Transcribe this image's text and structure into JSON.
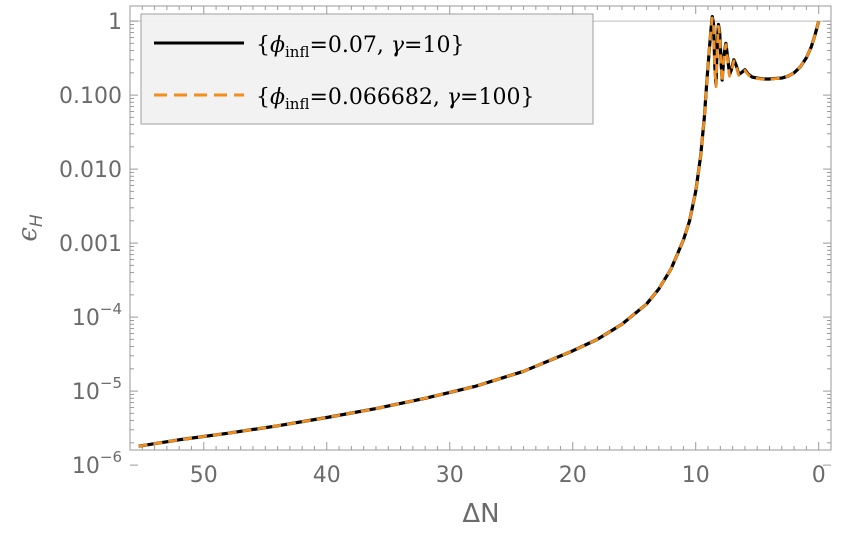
{
  "chart_data": {
    "type": "line",
    "title": "",
    "xlabel": "ΔN",
    "ylabel": "ϵH",
    "ylabel_main": "ϵ",
    "ylabel_sub": "H",
    "x_reversed": true,
    "xlim": [
      56,
      -1
    ],
    "ylim": [
      1.6e-06,
      1.6
    ],
    "yscale": "log",
    "grid": false,
    "reference_line_y": 1,
    "legend_placement": "top-left",
    "x_ticks": [
      50,
      40,
      30,
      20,
      10,
      0
    ],
    "x_tick_labels": [
      "50",
      "40",
      "30",
      "20",
      "10",
      "0"
    ],
    "y_ticks": [
      {
        "value": 1e-06,
        "base": "10",
        "exp": "−6"
      },
      {
        "value": 1e-05,
        "base": "10",
        "exp": "−5"
      },
      {
        "value": 0.0001,
        "base": "10",
        "exp": "−4"
      },
      {
        "value": 0.001,
        "text": "0.001"
      },
      {
        "value": 0.01,
        "text": "0.010"
      },
      {
        "value": 0.1,
        "text": "0.100"
      },
      {
        "value": 1,
        "text": "1"
      }
    ],
    "series": [
      {
        "name": "{ϕinfl=0.07, γ=10}",
        "legend_parts": {
          "open": "{",
          "phi": "ϕ",
          "sub": "infl",
          "mid": "=0.07, ",
          "gamma": "γ",
          "close": "=10}"
        },
        "color": "#000000",
        "style": "solid",
        "points": [
          [
            55.3,
            1.8e-06
          ],
          [
            52,
            2.2e-06
          ],
          [
            48,
            2.7e-06
          ],
          [
            44,
            3.4e-06
          ],
          [
            40,
            4.4e-06
          ],
          [
            36,
            5.8e-06
          ],
          [
            32,
            8e-06
          ],
          [
            28,
            1.15e-05
          ],
          [
            24,
            1.85e-05
          ],
          [
            20,
            3.5e-05
          ],
          [
            18,
            5e-05
          ],
          [
            16,
            8e-05
          ],
          [
            14,
            0.00015
          ],
          [
            13,
            0.00024
          ],
          [
            12,
            0.00045
          ],
          [
            11,
            0.0011
          ],
          [
            10.5,
            0.002
          ],
          [
            10,
            0.005
          ],
          [
            9.6,
            0.015
          ],
          [
            9.3,
            0.05
          ],
          [
            9.1,
            0.15
          ],
          [
            8.9,
            0.4
          ],
          [
            8.75,
            0.8
          ],
          [
            8.65,
            1.15
          ],
          [
            8.55,
            0.9
          ],
          [
            8.45,
            0.25
          ],
          [
            8.35,
            0.14
          ],
          [
            8.25,
            0.5
          ],
          [
            8.15,
            0.9
          ],
          [
            8.05,
            0.7
          ],
          [
            7.95,
            0.3
          ],
          [
            7.85,
            0.16
          ],
          [
            7.7,
            0.35
          ],
          [
            7.55,
            0.5
          ],
          [
            7.4,
            0.32
          ],
          [
            7.25,
            0.19
          ],
          [
            7.1,
            0.22
          ],
          [
            6.9,
            0.3
          ],
          [
            6.7,
            0.25
          ],
          [
            6.5,
            0.19
          ],
          [
            6.3,
            0.2
          ],
          [
            6.0,
            0.22
          ],
          [
            5.7,
            0.19
          ],
          [
            5.4,
            0.175
          ],
          [
            5.0,
            0.17
          ],
          [
            4.5,
            0.165
          ],
          [
            4.0,
            0.165
          ],
          [
            3.5,
            0.168
          ],
          [
            3.0,
            0.17
          ],
          [
            2.5,
            0.18
          ],
          [
            2.0,
            0.2
          ],
          [
            1.5,
            0.24
          ],
          [
            1.0,
            0.32
          ],
          [
            0.6,
            0.45
          ],
          [
            0.3,
            0.65
          ],
          [
            0.0,
            1.0
          ]
        ]
      },
      {
        "name": "{ϕinfl=0.066682, γ=100}",
        "legend_parts": {
          "open": "{",
          "phi": "ϕ",
          "sub": "infl",
          "mid": "=0.066682, ",
          "gamma": "γ",
          "close": "=100}"
        },
        "color": "#f28e1c",
        "style": "dashed",
        "points": [
          [
            55.3,
            1.8e-06
          ],
          [
            52,
            2.2e-06
          ],
          [
            48,
            2.7e-06
          ],
          [
            44,
            3.4e-06
          ],
          [
            40,
            4.4e-06
          ],
          [
            36,
            5.8e-06
          ],
          [
            32,
            8e-06
          ],
          [
            28,
            1.15e-05
          ],
          [
            24,
            1.85e-05
          ],
          [
            20,
            3.5e-05
          ],
          [
            18,
            5e-05
          ],
          [
            16,
            8e-05
          ],
          [
            14,
            0.00015
          ],
          [
            13,
            0.00024
          ],
          [
            12,
            0.00045
          ],
          [
            11,
            0.0011
          ],
          [
            10.5,
            0.002
          ],
          [
            10,
            0.005
          ],
          [
            9.6,
            0.015
          ],
          [
            9.3,
            0.05
          ],
          [
            9.1,
            0.15
          ],
          [
            8.9,
            0.4
          ],
          [
            8.75,
            0.8
          ],
          [
            8.65,
            1.1
          ],
          [
            8.55,
            0.85
          ],
          [
            8.45,
            0.22
          ],
          [
            8.35,
            0.13
          ],
          [
            8.25,
            0.45
          ],
          [
            8.15,
            0.85
          ],
          [
            8.05,
            0.65
          ],
          [
            7.95,
            0.28
          ],
          [
            7.85,
            0.15
          ],
          [
            7.7,
            0.33
          ],
          [
            7.55,
            0.48
          ],
          [
            7.4,
            0.3
          ],
          [
            7.25,
            0.18
          ],
          [
            7.1,
            0.21
          ],
          [
            6.9,
            0.29
          ],
          [
            6.7,
            0.24
          ],
          [
            6.5,
            0.185
          ],
          [
            6.3,
            0.195
          ],
          [
            6.0,
            0.215
          ],
          [
            5.7,
            0.185
          ],
          [
            5.4,
            0.172
          ],
          [
            5.0,
            0.168
          ],
          [
            4.5,
            0.164
          ],
          [
            4.0,
            0.164
          ],
          [
            3.5,
            0.167
          ],
          [
            3.0,
            0.17
          ],
          [
            2.5,
            0.18
          ],
          [
            2.0,
            0.2
          ],
          [
            1.5,
            0.24
          ],
          [
            1.0,
            0.32
          ],
          [
            0.6,
            0.45
          ],
          [
            0.3,
            0.65
          ],
          [
            0.0,
            1.0
          ]
        ]
      }
    ]
  }
}
